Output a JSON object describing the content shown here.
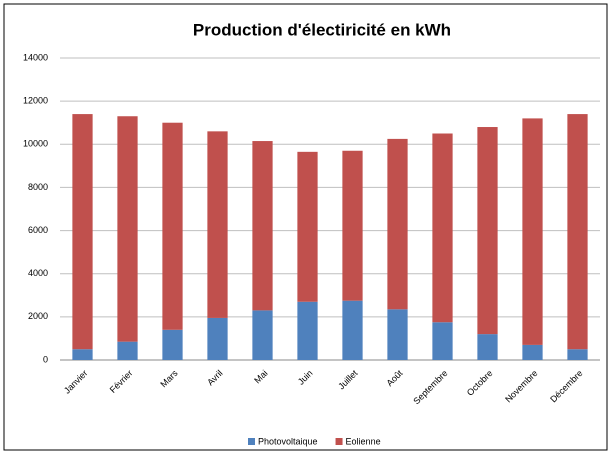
{
  "chart_data": {
    "type": "stacked_bar",
    "title": "Production d'électiricité en kWh",
    "categories": [
      "Janvier",
      "Février",
      "Mars",
      "Avril",
      "Mai",
      "Juin",
      "Juillet",
      "Août",
      "Septembre",
      "Octobre",
      "Novembre",
      "Décembre"
    ],
    "series": [
      {
        "name": "Photovoltaique",
        "color": "#4f81bd",
        "values": [
          500,
          850,
          1400,
          1950,
          2300,
          2700,
          2750,
          2350,
          1750,
          1200,
          700,
          500
        ]
      },
      {
        "name": "Eolienne",
        "color": "#c0504d",
        "values": [
          10900,
          10450,
          9600,
          8650,
          7850,
          6950,
          6950,
          7900,
          8750,
          9600,
          10500,
          10900
        ]
      }
    ],
    "ylim": [
      0,
      14000
    ],
    "yticks": [
      0,
      2000,
      4000,
      6000,
      8000,
      10000,
      12000,
      14000
    ],
    "grid": true,
    "legend": "bottom"
  }
}
